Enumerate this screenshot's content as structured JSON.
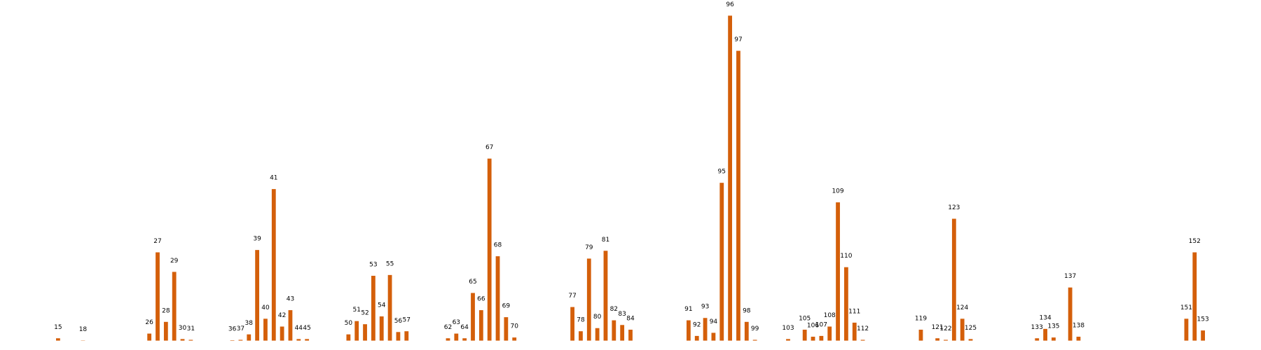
{
  "chart_data": {
    "type": "bar",
    "color": "#d45f0a",
    "x": [
      15,
      18,
      26,
      27,
      28,
      29,
      30,
      31,
      36,
      37,
      38,
      39,
      40,
      41,
      42,
      43,
      44,
      45,
      50,
      51,
      52,
      53,
      54,
      55,
      56,
      57,
      62,
      63,
      64,
      65,
      66,
      67,
      68,
      69,
      70,
      77,
      78,
      79,
      80,
      81,
      82,
      83,
      84,
      91,
      92,
      93,
      94,
      95,
      96,
      97,
      98,
      99,
      103,
      105,
      106,
      107,
      108,
      109,
      110,
      111,
      112,
      119,
      121,
      122,
      123,
      124,
      125,
      133,
      134,
      135,
      137,
      138,
      151,
      152,
      153
    ],
    "values": [
      3,
      0.3,
      9,
      113,
      24,
      88,
      2,
      1,
      0.5,
      1,
      8,
      116,
      28,
      194,
      18,
      39,
      2,
      2,
      8,
      25,
      21,
      83,
      31,
      84,
      11,
      12,
      3,
      9,
      3,
      61,
      39,
      233,
      108,
      30,
      4,
      43,
      12,
      105,
      16,
      115,
      26,
      20,
      14,
      26,
      6,
      29,
      10,
      202,
      416,
      371,
      24,
      1,
      2,
      14,
      5,
      6,
      18,
      177,
      94,
      23,
      1,
      14,
      3,
      1,
      156,
      28,
      2,
      3,
      15,
      4,
      68,
      5,
      28,
      113,
      13
    ],
    "xlim": [
      8,
      160
    ],
    "ylim": [
      0,
      420
    ]
  }
}
